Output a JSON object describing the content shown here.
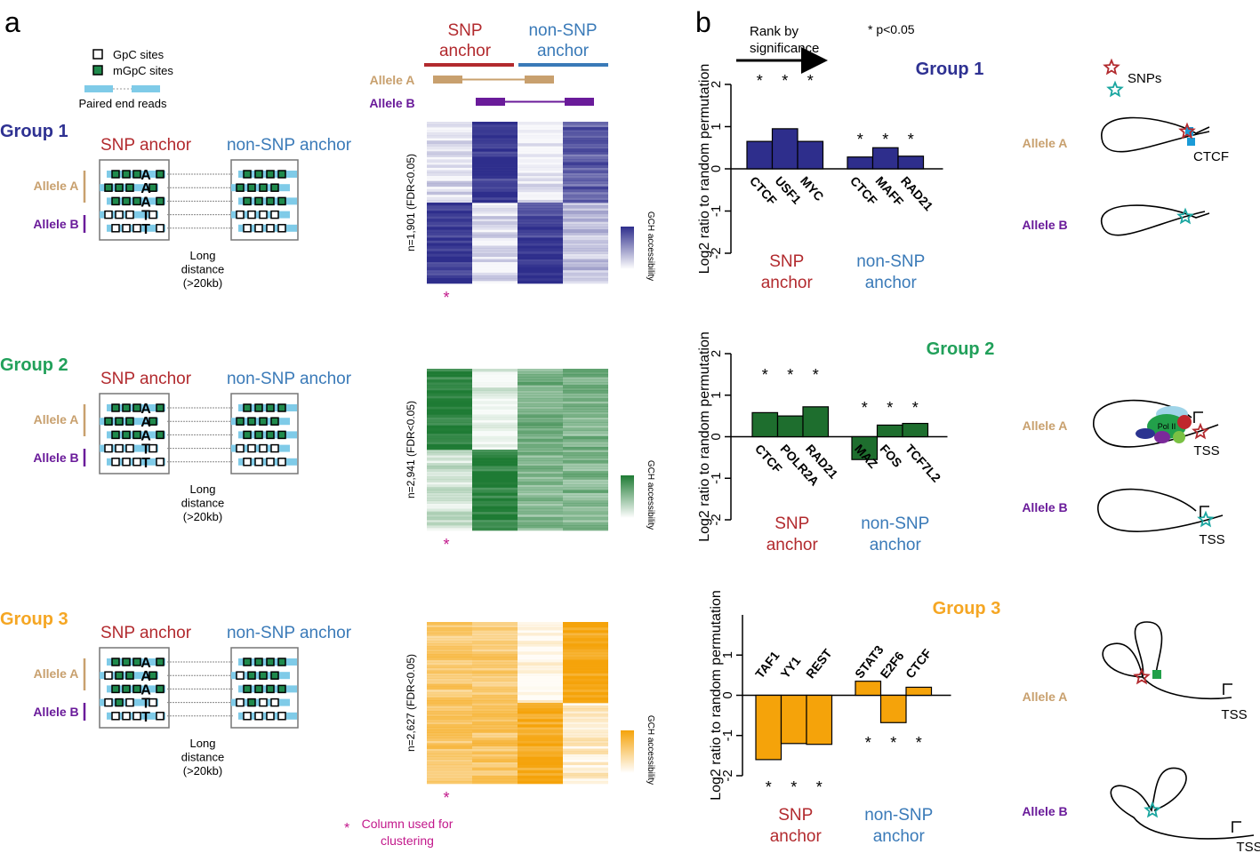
{
  "panel_a": {
    "label": "a",
    "legend": {
      "gpc": "GpC sites",
      "mgpc": "mGpC sites",
      "reads": "Paired end reads"
    },
    "header": {
      "snp_anchor": [
        "SNP",
        "anchor"
      ],
      "non_snp_anchor": [
        "non-SNP",
        "anchor"
      ],
      "allele_a": "Allele A",
      "allele_b": "Allele B"
    },
    "groups": [
      {
        "title": "Group 1",
        "snp_anchor": "SNP anchor",
        "non_snp_anchor": "non-SNP anchor",
        "allele_a": "Allele A",
        "allele_b": "Allele B",
        "letters": [
          "A",
          "A",
          "A",
          "T",
          "T"
        ],
        "distance": [
          "Long",
          "distance",
          "(>20kb)"
        ],
        "heatmap_label": "n=1,901 (FDR<0.05)",
        "colorbar_label": "GCH accessibility",
        "star": "*"
      },
      {
        "title": "Group 2",
        "snp_anchor": "SNP anchor",
        "non_snp_anchor": "non-SNP anchor",
        "allele_a": "Allele A",
        "allele_b": "Allele B",
        "letters": [
          "A",
          "A",
          "A",
          "T",
          "T"
        ],
        "distance": [
          "Long",
          "distance",
          "(>20kb)"
        ],
        "heatmap_label": "n=2,941 (FDR<0.05)",
        "colorbar_label": "GCH accessibility",
        "star": "*"
      },
      {
        "title": "Group 3",
        "snp_anchor": "SNP anchor",
        "non_snp_anchor": "non-SNP anchor",
        "allele_a": "Allele A",
        "allele_b": "Allele B",
        "letters": [
          "A",
          "A",
          "A",
          "T",
          "T"
        ],
        "distance": [
          "Long",
          "distance",
          "(>20kb)"
        ],
        "heatmap_label": "n=2,627 (FDR<0.05)",
        "colorbar_label": "GCH accessibility",
        "star": "*"
      }
    ],
    "footnote": {
      "star": "*",
      "text": [
        "Column used for",
        "clustering"
      ]
    }
  },
  "panel_b": {
    "label": "b",
    "rank": [
      "Rank by",
      "significance"
    ],
    "pvalue": "* p<0.05",
    "snps": "SNPs",
    "charts": [
      {
        "type": "bar",
        "title": "Group 1",
        "y_label": "Log2 ratio to random permutation",
        "categories": [
          "CTCF",
          "USF1",
          "MYC",
          "CTCF",
          "MAFF",
          "RAD21"
        ],
        "values": [
          0.65,
          0.95,
          0.65,
          0.28,
          0.5,
          0.3
        ],
        "color": "#2e2e8c",
        "ylim": [
          -2,
          2
        ],
        "yticks": [
          -2,
          -1,
          0,
          1,
          2
        ],
        "star": "*",
        "snp_group": [
          "SNP",
          "anchor"
        ],
        "non_snp_group": [
          "non-SNP",
          "anchor"
        ]
      },
      {
        "type": "bar",
        "title": "Group 2",
        "y_label": "Log2 ratio to random permutation",
        "categories": [
          "CTCF",
          "POLR2A",
          "RAD21",
          "MAZ",
          "FOS",
          "TCF7L2"
        ],
        "values": [
          0.58,
          0.5,
          0.72,
          -0.55,
          0.28,
          0.32
        ],
        "color": "#1e6e2e",
        "ylim": [
          -2,
          2
        ],
        "yticks": [
          -2,
          -1,
          0,
          1,
          2
        ],
        "star": "*",
        "snp_group": [
          "SNP",
          "anchor"
        ],
        "non_snp_group": [
          "non-SNP",
          "anchor"
        ]
      },
      {
        "type": "bar",
        "title": "Group 3",
        "y_label": "Log2 ratio to random permutation",
        "categories": [
          "TAF1",
          "YY1",
          "REST",
          "STAT3",
          "E2F6",
          "CTCF"
        ],
        "values": [
          -1.6,
          -1.2,
          -1.22,
          0.35,
          -0.68,
          0.2
        ],
        "color": "#f5a30a",
        "ylim": [
          -2,
          2
        ],
        "yticks": [
          -2,
          -1,
          0,
          1
        ],
        "star": "*",
        "snp_group": [
          "SNP",
          "anchor"
        ],
        "non_snp_group": [
          "non-SNP",
          "anchor"
        ]
      }
    ],
    "schematics": [
      {
        "allele_a": "Allele A",
        "allele_b": "Allele B",
        "factor": "CTCF"
      },
      {
        "allele_a": "Allele A",
        "allele_b": "Allele B",
        "pol": "Pol II",
        "tss_a": "TSS",
        "tss_b": "TSS"
      },
      {
        "allele_a": "Allele A",
        "allele_b": "Allele B",
        "tss_a": "TSS",
        "tss_b": "TSS"
      }
    ]
  }
}
